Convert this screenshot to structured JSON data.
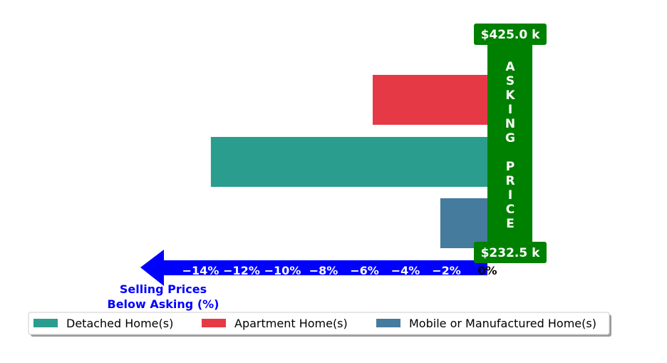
{
  "chart_data": {
    "type": "bar",
    "orientation": "horizontal",
    "categories": [
      "Apartment Home(s)",
      "Detached Home(s)",
      "Mobile or Manufactured Home(s)"
    ],
    "series": [
      {
        "name": "Apartment Home(s)",
        "value": -5.6,
        "color": "#e63946"
      },
      {
        "name": "Detached Home(s)",
        "value": -13.5,
        "color": "#2a9d8f"
      },
      {
        "name": "Mobile or Manufactured Home(s)",
        "value": -2.3,
        "color": "#457b9d"
      }
    ],
    "xlim": [
      -14.6,
      0
    ],
    "xticks": [
      -14,
      -12,
      -10,
      -8,
      -6,
      -4,
      -2,
      0
    ],
    "xtick_labels": [
      "−14%",
      "−12%",
      "−10%",
      "−8%",
      "−6%",
      "−4%",
      "−2%",
      "0%"
    ],
    "xlabel": "Selling Prices\nBelow Asking (%)",
    "asking_price_label": "ASKING PRICE",
    "asking_price_top": "$425.0 k",
    "asking_price_bottom": "$232.5 k",
    "legend": {
      "placement": "bottom",
      "entries": [
        "Detached Home(s)",
        "Apartment Home(s)",
        "Mobile or Manufactured Home(s)"
      ]
    },
    "colors": {
      "asking_price": "#008000",
      "axis_arrow": "#0000ff",
      "xlabel": "#0000ff"
    }
  }
}
